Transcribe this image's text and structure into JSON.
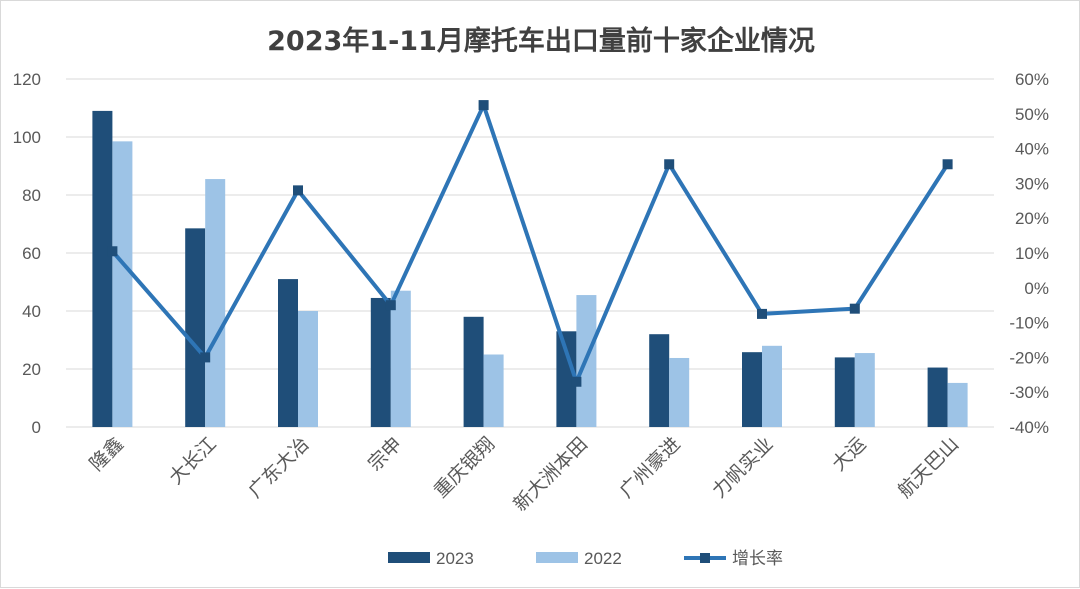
{
  "chart_data": {
    "type": "bar",
    "title": "2023年1-11月摩托车出口量前十家企业情况",
    "categories": [
      "隆鑫",
      "大长江",
      "广东大冶",
      "宗申",
      "重庆银翔",
      "新大洲本田",
      "广州豪进",
      "力帆实业",
      "大运",
      "航天巴山"
    ],
    "series": [
      {
        "name": "2023",
        "type": "bar",
        "axis": "left",
        "color": "#1f4e79",
        "values": [
          109,
          68.5,
          51,
          44.5,
          38,
          33,
          32,
          25.8,
          24,
          20.5
        ]
      },
      {
        "name": "2022",
        "type": "bar",
        "axis": "left",
        "color": "#9dc3e6",
        "values": [
          98.5,
          85.5,
          40,
          47,
          25,
          45.5,
          23.8,
          28,
          25.5,
          15.2
        ]
      },
      {
        "name": "增长率",
        "type": "line",
        "axis": "right",
        "color": "#2e75b6",
        "values": [
          10.5,
          -20,
          28,
          -5,
          52.5,
          -27,
          35.5,
          -7.5,
          -6,
          35.5
        ]
      }
    ],
    "y_left": {
      "min": 0,
      "max": 120,
      "ticks": [
        "0",
        "20",
        "40",
        "60",
        "80",
        "100",
        "120"
      ]
    },
    "y_right": {
      "min": -40,
      "max": 60,
      "unit": "%",
      "ticks": [
        "-40%",
        "-30%",
        "-20%",
        "-10%",
        "0%",
        "10%",
        "20%",
        "30%",
        "40%",
        "50%",
        "60%"
      ]
    },
    "grid": true,
    "legend": "bottom",
    "xlabel": "",
    "ylabel": ""
  }
}
